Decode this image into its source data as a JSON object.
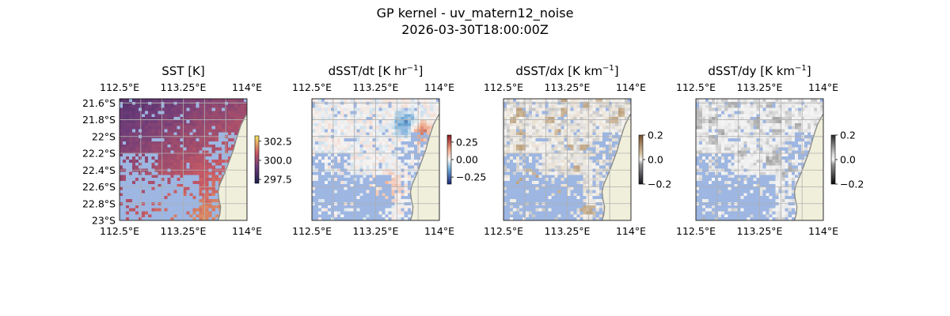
{
  "figure": {
    "title_line1": "GP kernel - uv_matern12_noise",
    "title_line2": "2026-03-30T18:00:00Z"
  },
  "colors": {
    "land": "#efefdb",
    "masked_ocean": "#9db6e2",
    "coastline": "#888888",
    "gridline": "#b0b0b0"
  },
  "chart_data": [
    {
      "type": "heatmap",
      "title": "SST [K]",
      "colormap": "thermal (purple to orange)",
      "xticks": [
        "112.5°E",
        "113.25°E",
        "114°E"
      ],
      "yticks": [
        "21.6°S",
        "21.8°S",
        "22°S",
        "22.2°S",
        "22.4°S",
        "22.6°S",
        "22.8°S",
        "23°S"
      ],
      "xlim": [
        112.5,
        114.0
      ],
      "ylim": [
        -23.0,
        -21.55
      ],
      "colorbar_ticks": [
        "302.5",
        "300.0",
        "297.5"
      ],
      "colorbar_values": [
        302.5,
        300.0,
        297.5
      ],
      "colorbar_range": [
        297.0,
        303.2
      ]
    },
    {
      "type": "heatmap",
      "title": "dSST/dt [K hr",
      "title_exponent": "−1",
      "title_suffix": "]",
      "colormap": "diverging blue-white-red",
      "xticks": [
        "112.5°E",
        "113.25°E",
        "114°E"
      ],
      "xlim": [
        112.5,
        114.0
      ],
      "ylim": [
        -23.0,
        -21.55
      ],
      "colorbar_ticks": [
        "0.25",
        "0.00",
        "−0.25"
      ],
      "colorbar_values": [
        0.25,
        0.0,
        -0.25
      ],
      "colorbar_range": [
        -0.35,
        0.35
      ]
    },
    {
      "type": "heatmap",
      "title": "dSST/dx [K km",
      "title_exponent": "−1",
      "title_suffix": "]",
      "colormap": "diverging dark-white-brown",
      "xticks": [
        "112.5°E",
        "113.25°E",
        "114°E"
      ],
      "xlim": [
        112.5,
        114.0
      ],
      "ylim": [
        -23.0,
        -21.55
      ],
      "colorbar_ticks": [
        "0.2",
        "0.0",
        "−0.2"
      ],
      "colorbar_values": [
        0.2,
        0.0,
        -0.2
      ],
      "colorbar_range": [
        -0.2,
        0.2
      ]
    },
    {
      "type": "heatmap",
      "title": "dSST/dy [K km",
      "title_exponent": "−1",
      "title_suffix": "]",
      "colormap": "diverging dark-white-gray",
      "xticks": [
        "112.5°E",
        "113.25°E",
        "114°E"
      ],
      "xlim": [
        112.5,
        114.0
      ],
      "ylim": [
        -23.0,
        -21.55
      ],
      "colorbar_ticks": [
        "0.2",
        "0.0",
        "−0.2"
      ],
      "colorbar_values": [
        0.2,
        0.0,
        -0.2
      ],
      "colorbar_range": [
        -0.2,
        0.2
      ]
    }
  ]
}
